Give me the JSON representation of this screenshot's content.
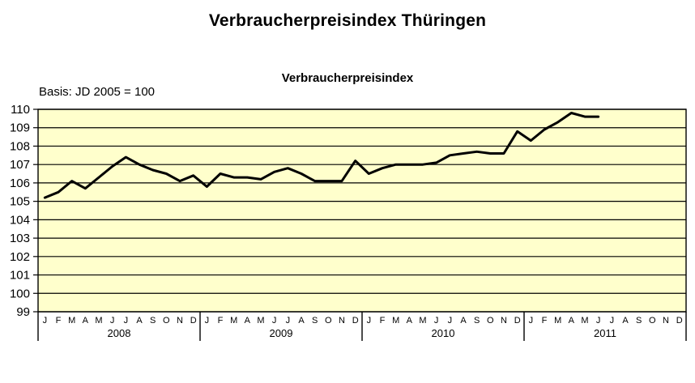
{
  "header": {
    "title": "Verbraucherpreisindex Thüringen"
  },
  "chart": {
    "subtitle": "Verbraucherpreisindex",
    "basis_label": "Basis: JD 2005 = 100"
  },
  "colors": {
    "plot_background": "#FFFFCC",
    "grid": "#000000",
    "line": "#000000",
    "text": "#000000",
    "page_background": "#FFFFFF"
  },
  "chart_data": {
    "type": "line",
    "title": "Verbraucherpreisindex",
    "xlabel": "",
    "ylabel": "",
    "ylim": [
      99,
      110
    ],
    "y_tick_step": 1,
    "grid": true,
    "legend_position": "none",
    "years": [
      "2008",
      "2009",
      "2010",
      "2011"
    ],
    "month_letters": [
      "J",
      "F",
      "M",
      "A",
      "M",
      "J",
      "J",
      "A",
      "S",
      "O",
      "N",
      "D"
    ],
    "series": [
      {
        "name": "Verbraucherpreisindex Thüringen (JD 2005 = 100)",
        "start_month_index": 0,
        "values": [
          105.2,
          105.5,
          106.1,
          105.7,
          106.3,
          106.9,
          107.4,
          107.0,
          106.7,
          106.5,
          106.1,
          106.4,
          105.8,
          106.5,
          106.3,
          106.3,
          106.2,
          106.6,
          106.8,
          106.5,
          106.1,
          106.1,
          106.1,
          107.2,
          106.5,
          106.8,
          107.0,
          107.0,
          107.0,
          107.1,
          107.5,
          107.6,
          107.7,
          107.6,
          107.6,
          108.8,
          108.3,
          108.9,
          109.3,
          109.8,
          109.6,
          109.6
        ]
      }
    ]
  }
}
